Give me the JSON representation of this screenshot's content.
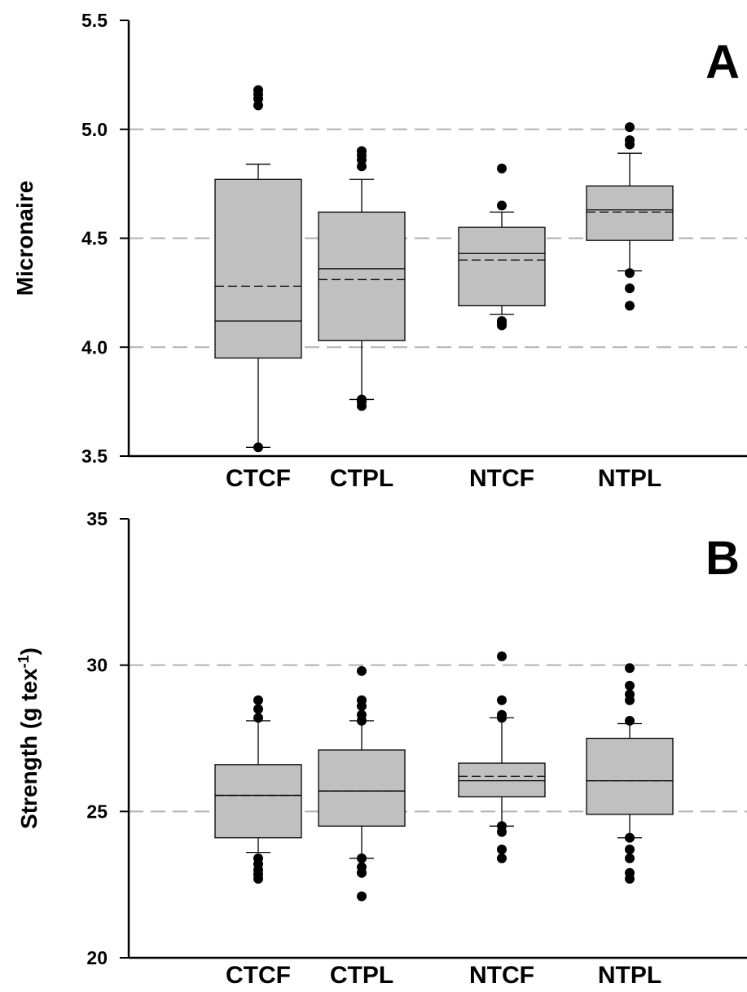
{
  "chart_data": [
    {
      "type": "box",
      "panel_label": "A",
      "ylabel": "Micronaire",
      "ylim": [
        3.5,
        5.5
      ],
      "yticks": [
        "3.5",
        "4.0",
        "4.5",
        "5.0",
        "5.5"
      ],
      "grid_lines": [
        4.0,
        4.5,
        5.0
      ],
      "categories": [
        "CTCF",
        "CTPL",
        "NTCF",
        "NTPL"
      ],
      "boxes": [
        {
          "category": "CTCF",
          "whisker_low": 3.54,
          "q1": 3.95,
          "median": 4.12,
          "mean": 4.28,
          "q3": 4.77,
          "whisker_high": 4.84,
          "outliers": [
            3.54,
            5.11,
            5.14,
            5.16,
            5.18
          ]
        },
        {
          "category": "CTPL",
          "whisker_low": 3.76,
          "q1": 4.03,
          "median": 4.36,
          "mean": 4.31,
          "q3": 4.62,
          "whisker_high": 4.77,
          "outliers": [
            3.73,
            3.75,
            3.76,
            4.83,
            4.86,
            4.88,
            4.9
          ]
        },
        {
          "category": "NTCF",
          "whisker_low": 4.15,
          "q1": 4.19,
          "median": 4.43,
          "mean": 4.4,
          "q3": 4.55,
          "whisker_high": 4.62,
          "outliers": [
            4.1,
            4.11,
            4.12,
            4.65,
            4.82
          ]
        },
        {
          "category": "NTPL",
          "whisker_low": 4.35,
          "q1": 4.49,
          "median": 4.63,
          "mean": 4.62,
          "q3": 4.74,
          "whisker_high": 4.89,
          "outliers": [
            4.19,
            4.27,
            4.34,
            4.93,
            4.95,
            5.01
          ]
        }
      ]
    },
    {
      "type": "box",
      "panel_label": "B",
      "ylabel": "Strength (g tex",
      "ylabel_superscript": "-1",
      "ylabel_close": ")",
      "ylim": [
        20,
        35
      ],
      "yticks": [
        "20",
        "25",
        "30",
        "35"
      ],
      "grid_lines": [
        25,
        30
      ],
      "categories": [
        "CTCF",
        "CTPL",
        "NTCF",
        "NTPL"
      ],
      "boxes": [
        {
          "category": "CTCF",
          "whisker_low": 23.6,
          "q1": 24.1,
          "median": 25.55,
          "mean": 25.55,
          "q3": 26.6,
          "whisker_high": 28.1,
          "outliers": [
            22.7,
            22.85,
            23.0,
            23.2,
            23.4,
            28.2,
            28.5,
            28.8
          ]
        },
        {
          "category": "CTPL",
          "whisker_low": 23.4,
          "q1": 24.5,
          "median": 25.7,
          "mean": 25.7,
          "q3": 27.1,
          "whisker_high": 28.1,
          "outliers": [
            22.1,
            22.9,
            23.1,
            23.4,
            28.1,
            28.3,
            28.6,
            28.8,
            29.8
          ]
        },
        {
          "category": "NTCF",
          "whisker_low": 24.5,
          "q1": 25.5,
          "median": 26.05,
          "mean": 26.2,
          "q3": 26.65,
          "whisker_high": 28.2,
          "outliers": [
            23.4,
            23.7,
            24.3,
            24.5,
            28.2,
            28.3,
            28.8,
            30.3
          ]
        },
        {
          "category": "NTPL",
          "whisker_low": 24.1,
          "q1": 24.9,
          "median": 26.05,
          "mean": 26.05,
          "q3": 27.5,
          "whisker_high": 28.0,
          "outliers": [
            22.7,
            22.9,
            23.4,
            23.7,
            24.1,
            28.1,
            28.8,
            29.0,
            29.3,
            29.9
          ]
        }
      ]
    }
  ],
  "colors": {
    "box_fill": "#c0c0c0",
    "grid": "#b0b0b0",
    "ink": "#000000"
  }
}
